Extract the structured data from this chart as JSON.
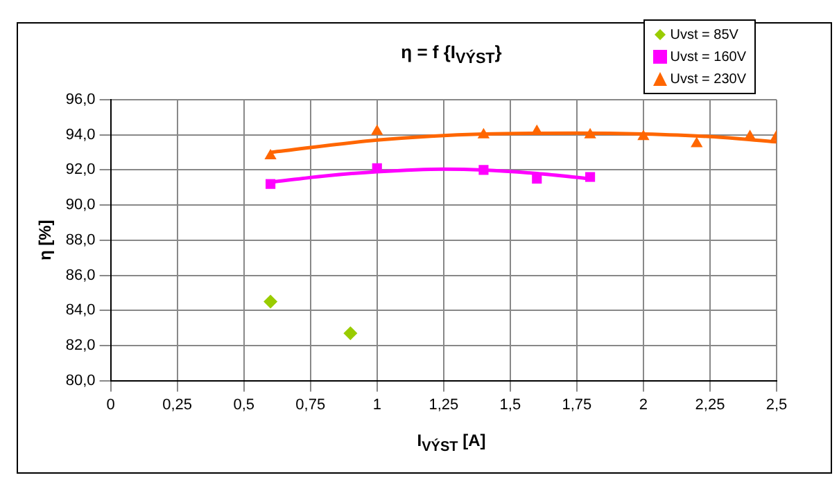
{
  "chart_data": {
    "type": "scatter",
    "title": "η = f {I$_{VÝST}$}",
    "xlabel": "I$_{VÝST}$ [A]",
    "ylabel": "η [%]",
    "xlim": [
      0,
      2.5
    ],
    "xticks": [
      0,
      {
        "value": 0.25,
        "label": "0,25"
      },
      {
        "value": 0.5,
        "label": "0,5"
      },
      {
        "value": 0.75,
        "label": "0,75"
      },
      1,
      {
        "value": 1.25,
        "label": "1,25"
      },
      {
        "value": 1.5,
        "label": "1,5"
      },
      {
        "value": 1.75,
        "label": "1,75"
      },
      2,
      {
        "value": 2.25,
        "label": "2,25"
      },
      {
        "value": 2.5,
        "label": "2,5"
      }
    ],
    "ylim": [
      80,
      96
    ],
    "yticks": [
      {
        "value": 80,
        "label": "80,0"
      },
      {
        "value": 82,
        "label": "82,0"
      },
      {
        "value": 84,
        "label": "84,0"
      },
      {
        "value": 86,
        "label": "86,0"
      },
      {
        "value": 88,
        "label": "88,0"
      },
      {
        "value": 90,
        "label": "90,0"
      },
      {
        "value": 92,
        "label": "92,0"
      },
      {
        "value": 94,
        "label": "94,0"
      },
      {
        "value": 96,
        "label": "96,0"
      }
    ],
    "grid": true,
    "legend": "top right",
    "series": [
      {
        "name": "Uvst = 85V",
        "color": "#99cc00",
        "marker": "diamond",
        "x": [
          0.6,
          0.9
        ],
        "values": [
          84.5,
          82.7
        ]
      },
      {
        "name": "Uvst = 160V",
        "color": "#ff00ff",
        "marker": "square",
        "x": [
          0.6,
          1.0,
          1.4,
          1.6,
          1.8
        ],
        "values": [
          91.2,
          92.1,
          92.0,
          91.5,
          91.6
        ]
      },
      {
        "name": "Uvst = 230V",
        "color": "#ff6600",
        "marker": "triangle",
        "x": [
          0.6,
          1.0,
          1.4,
          1.6,
          1.8,
          2.0,
          2.2,
          2.4,
          2.5
        ],
        "values": [
          92.8,
          94.2,
          94.0,
          94.2,
          94.0,
          93.9,
          93.5,
          93.9,
          93.9
        ]
      },
      {
        "type": "line",
        "color": "#ff00ff",
        "marker": "none",
        "x": [
          0.6,
          0.8,
          1.0,
          1.25,
          1.4,
          1.6,
          1.8
        ],
        "values": [
          91.3,
          91.65,
          91.9,
          92.05,
          92.0,
          91.8,
          91.5
        ]
      },
      {
        "type": "line",
        "color": "#ff6600",
        "marker": "none",
        "x": [
          0.6,
          1.0,
          1.4,
          1.75,
          2.0,
          2.25,
          2.5
        ],
        "values": [
          93.0,
          93.7,
          94.05,
          94.1,
          94.05,
          93.9,
          93.6
        ]
      }
    ]
  }
}
